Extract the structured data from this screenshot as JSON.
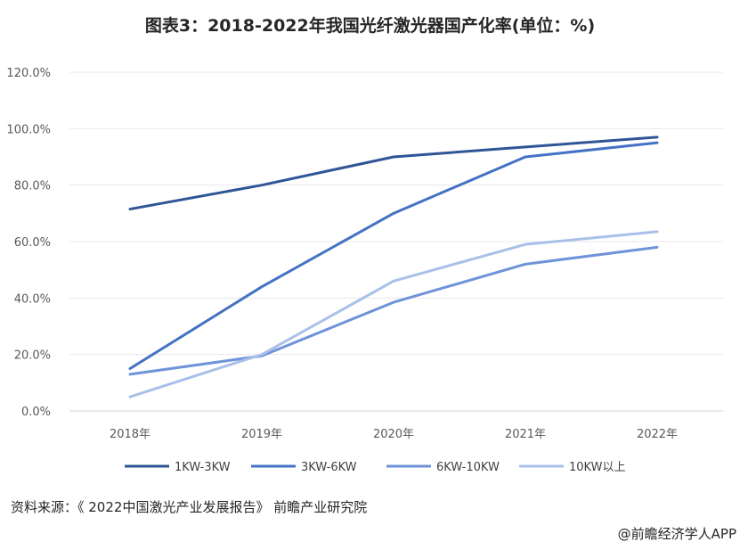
{
  "chart_data": {
    "type": "line",
    "title": "图表3：2018-2022年我国光纤激光器国产化率(单位：%)",
    "categories": [
      "2018年",
      "2019年",
      "2020年",
      "2021年",
      "2022年"
    ],
    "ylim": [
      0,
      120
    ],
    "yticks": [
      "0.0%",
      "20.0%",
      "40.0%",
      "60.0%",
      "80.0%",
      "100.0%",
      "120.0%"
    ],
    "ytick_values": [
      0,
      20,
      40,
      60,
      80,
      100,
      120
    ],
    "grid": "horizontal",
    "legend_position": "bottom",
    "series": [
      {
        "name": "1KW-3KW",
        "values": [
          71.5,
          80,
          90,
          93.5,
          97
        ],
        "color": "#2f5597"
      },
      {
        "name": "3KW-6KW",
        "values": [
          15,
          44,
          70,
          90,
          95
        ],
        "color": "#4472c4"
      },
      {
        "name": "6KW-10KW",
        "values": [
          13,
          19.5,
          38.5,
          52,
          58
        ],
        "color": "#6f93d9"
      },
      {
        "name": "10KW以上",
        "values": [
          5,
          20,
          46,
          59,
          63.5
        ],
        "color": "#a9c0e8"
      }
    ]
  },
  "footer": {
    "source": "资料来源：《 2022中国激光产业发展报告》 前瞻产业研究院",
    "credit": "@前瞻经济学人APP"
  }
}
